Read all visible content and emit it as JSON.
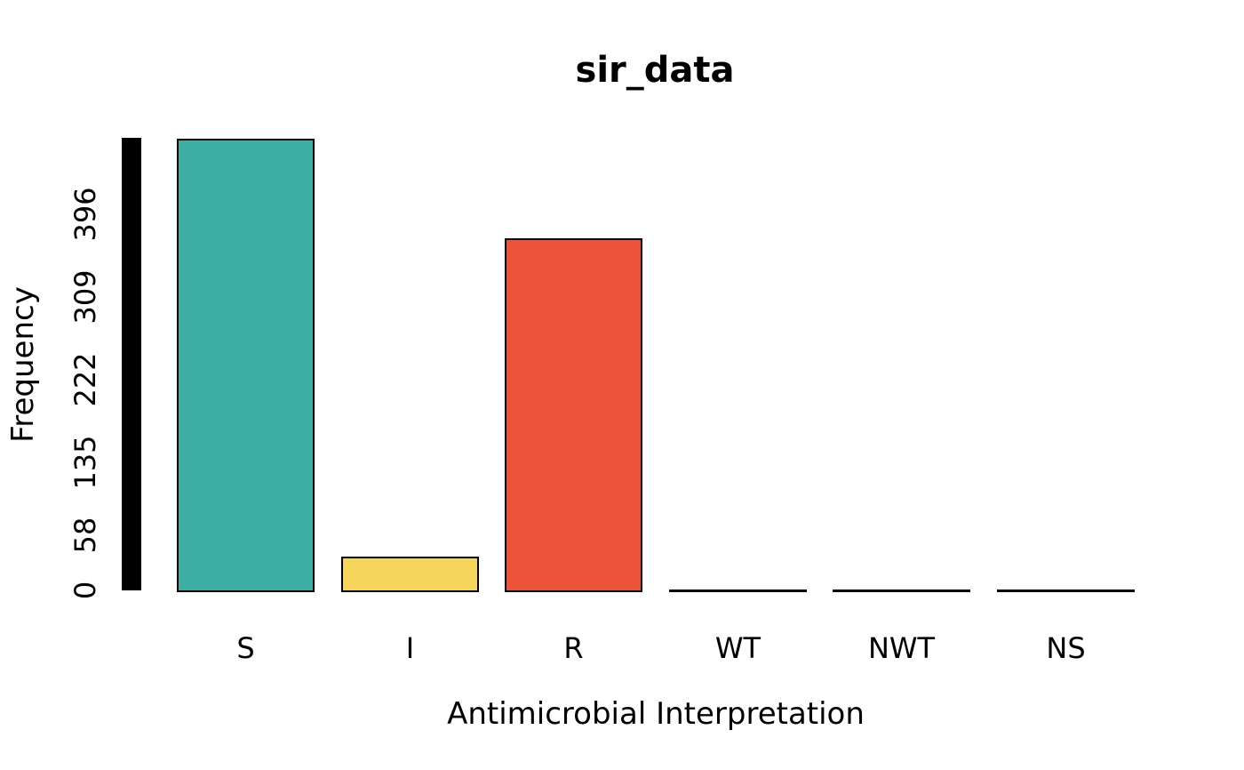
{
  "chart_data": {
    "type": "bar",
    "title": "sir_data",
    "xlabel": "Antimicrobial Interpretation",
    "ylabel": "Frequency",
    "categories": [
      "S",
      "I",
      "R",
      "WT",
      "NWT",
      "NS"
    ],
    "values": [
      476,
      36,
      371,
      0,
      0,
      0
    ],
    "bar_colors": [
      "#3CAEA3",
      "#F6D55C",
      "#ED553B",
      "#FFFFFF",
      "#FFFFFF",
      "#FFFFFF"
    ],
    "bar_border_color": "#000000",
    "y_ticks": [
      0,
      58,
      135,
      222,
      309,
      396
    ],
    "ylim": [
      0,
      477
    ],
    "y_axis_bar": {
      "from": 0,
      "to": 477,
      "color": "#000000"
    },
    "grid": false,
    "legend": "none",
    "background": "#FFFFFF",
    "text_color": "#000000"
  }
}
